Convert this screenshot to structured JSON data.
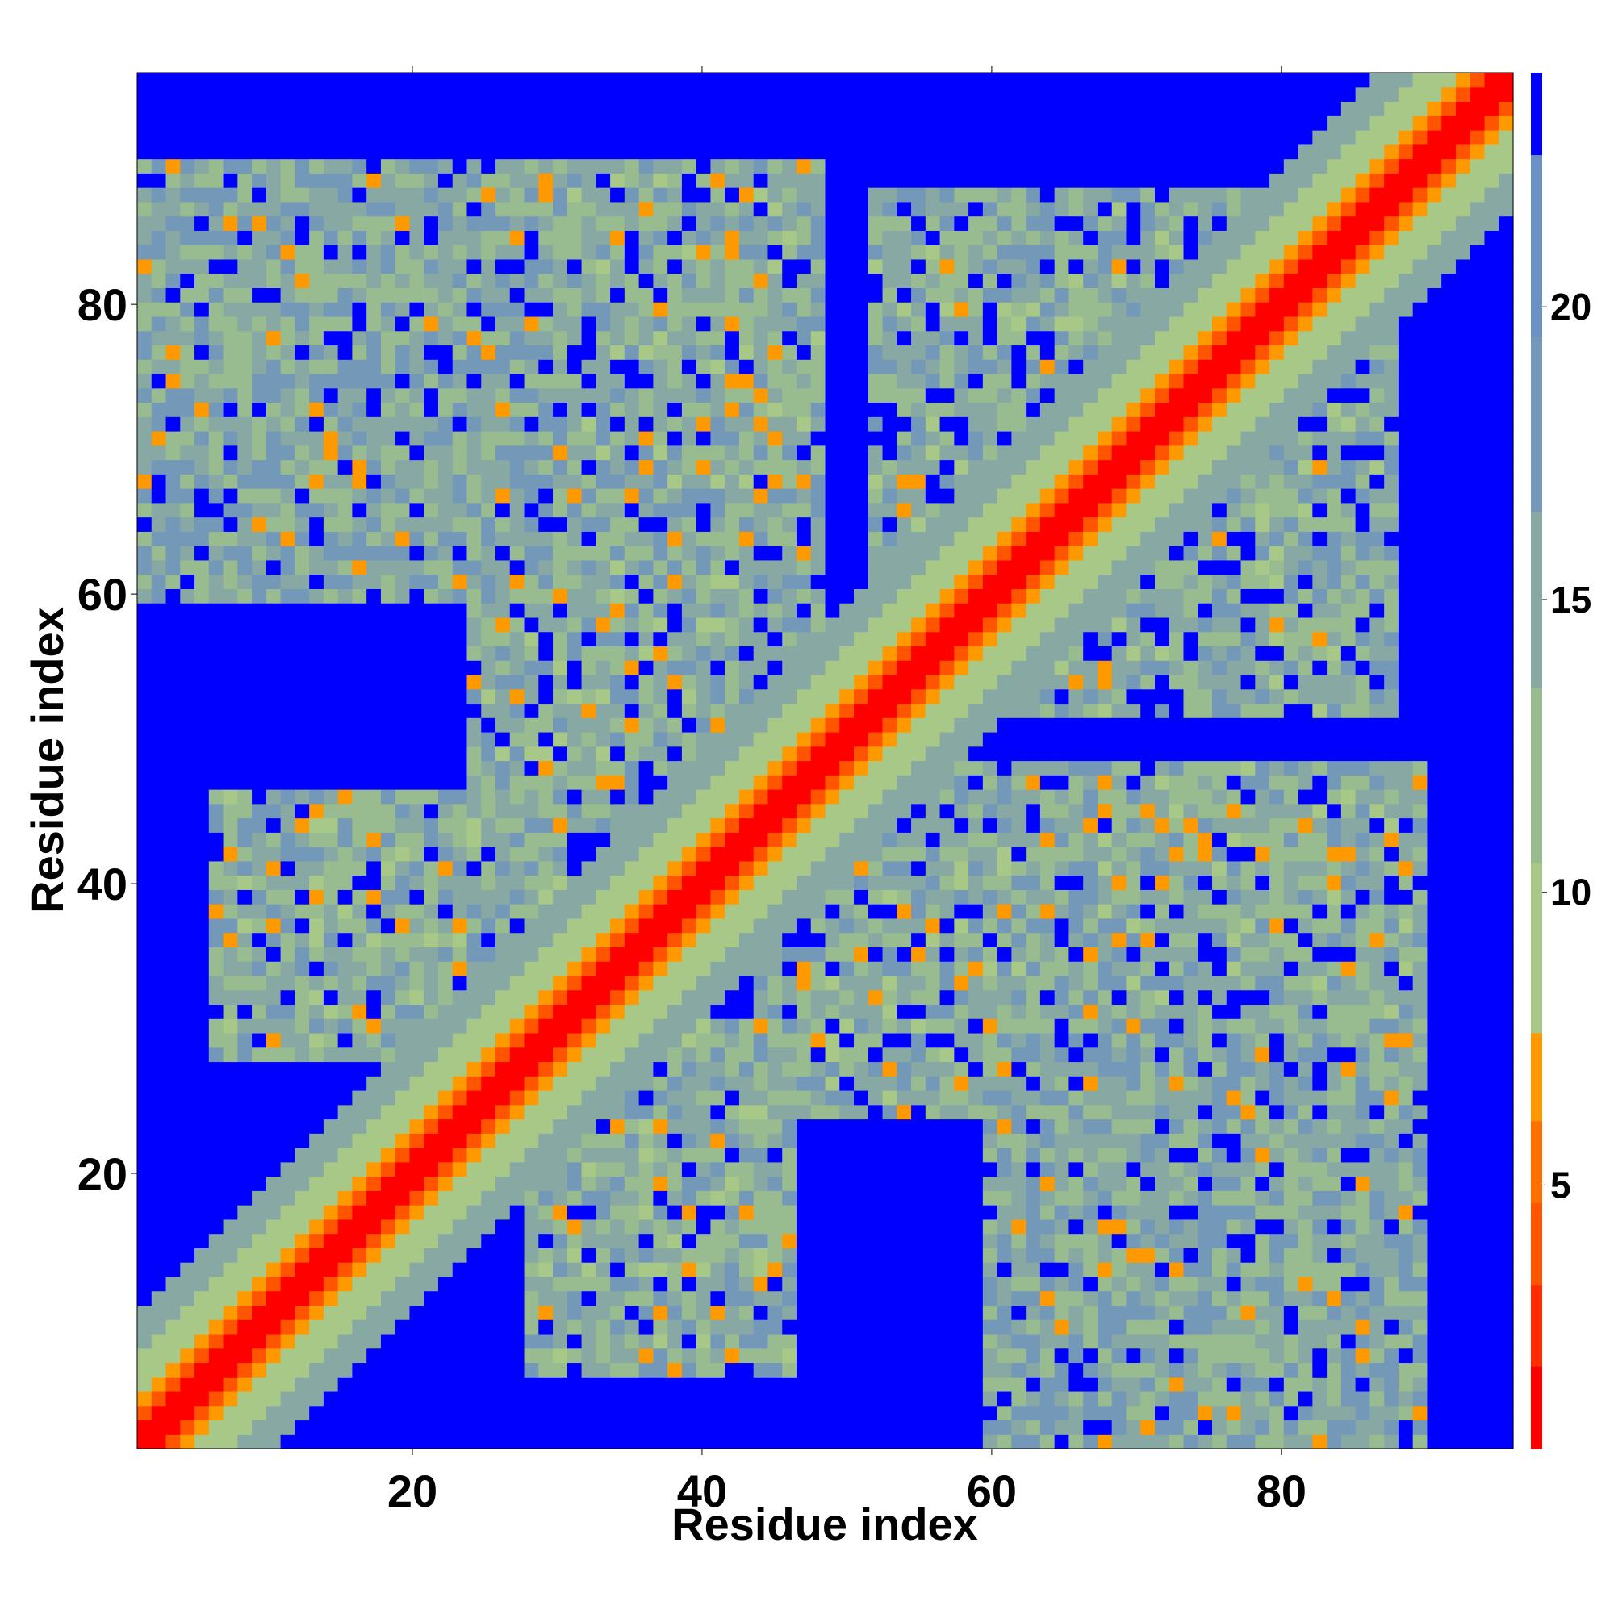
{
  "chart_data": {
    "type": "heatmap",
    "title": "",
    "xlabel": "Residue index",
    "ylabel": "Residue index",
    "xlim": [
      1,
      96
    ],
    "ylim": [
      1,
      96
    ],
    "x_ticks": [
      20,
      40,
      60,
      80
    ],
    "y_ticks": [
      20,
      40,
      60,
      80
    ],
    "n_residues": 96,
    "description_of_values": "pairwise residue distances; symmetric matrix",
    "colorbar": {
      "ticks": [
        5,
        10,
        15,
        20
      ],
      "range": [
        0.5,
        24
      ],
      "bands": [
        {
          "from": 0.5,
          "to": 1.9,
          "color": "#ff0000"
        },
        {
          "from": 1.9,
          "to": 3.3,
          "color": "#ff2a00"
        },
        {
          "from": 3.3,
          "to": 4.7,
          "color": "#ff5500"
        },
        {
          "from": 4.7,
          "to": 6.1,
          "color": "#ff7000"
        },
        {
          "from": 6.1,
          "to": 7.6,
          "color": "#ff9900"
        },
        {
          "from": 7.6,
          "to": 10.5,
          "color": "#a8c888"
        },
        {
          "from": 10.5,
          "to": 13.5,
          "color": "#98bc90"
        },
        {
          "from": 13.5,
          "to": 16.5,
          "color": "#88a8a4"
        },
        {
          "from": 16.5,
          "to": 19.5,
          "color": "#7498b8"
        },
        {
          "from": 19.5,
          "to": 22.6,
          "color": "#6a90c4"
        },
        {
          "from": 22.6,
          "to": 24,
          "color": "#0000ff"
        }
      ]
    },
    "cutoff_color": "#0000ff",
    "diagonal_bands": [
      {
        "max_offset": 1,
        "value": 1.2
      },
      {
        "max_offset": 2,
        "value": 3.5
      },
      {
        "max_offset": 3,
        "value": 6.5
      },
      {
        "max_offset": 6,
        "value": 10
      },
      {
        "max_offset": 9,
        "value": 14
      }
    ],
    "contact_regions": [
      {
        "x": [
          1,
          30
        ],
        "y": [
          60,
          90
        ],
        "value": 15
      },
      {
        "x": [
          24,
          48
        ],
        "y": [
          44,
          90
        ],
        "value": 14
      },
      {
        "x": [
          52,
          80
        ],
        "y": [
          55,
          88
        ],
        "value": 14
      },
      {
        "x": [
          52,
          88
        ],
        "y": [
          30,
          68
        ],
        "value": 14
      },
      {
        "x": [
          6,
          30
        ],
        "y": [
          28,
          46
        ],
        "value": 14
      },
      {
        "x": [
          18,
          44
        ],
        "y": [
          8,
          34
        ],
        "value": 14
      },
      {
        "x": [
          54,
          74
        ],
        "y": [
          26,
          48
        ],
        "value": 14
      },
      {
        "x": [
          66,
          90
        ],
        "y": [
          26,
          48
        ],
        "value": 15
      },
      {
        "x": [
          56,
          74
        ],
        "y": [
          4,
          22
        ],
        "value": 15
      },
      {
        "x": [
          70,
          90
        ],
        "y": [
          1,
          26
        ],
        "value": 15
      }
    ]
  }
}
